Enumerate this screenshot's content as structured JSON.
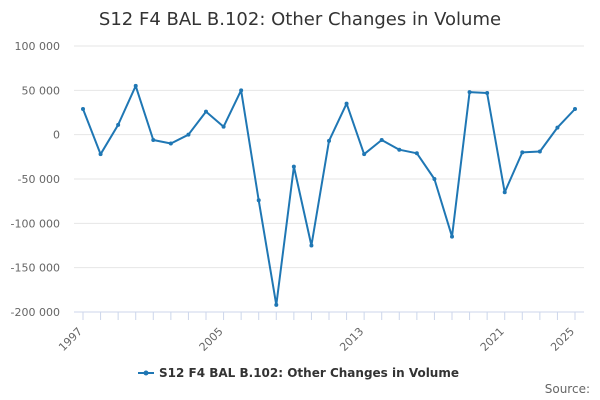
{
  "chart_data": {
    "type": "line",
    "title": "S12 F4 BAL B.102: Other Changes in Volume",
    "xlabel": "",
    "ylabel": "",
    "x": [
      1997,
      1998,
      1999,
      2000,
      2001,
      2002,
      2003,
      2004,
      2005,
      2006,
      2007,
      2008,
      2009,
      2010,
      2011,
      2012,
      2013,
      2014,
      2015,
      2016,
      2017,
      2018,
      2019,
      2020,
      2021,
      2022,
      2023,
      2024,
      2025
    ],
    "series": [
      {
        "name": "S12 F4 BAL B.102: Other Changes in Volume",
        "color": "#1f77b4",
        "values": [
          29000,
          -22000,
          11000,
          55000,
          -6000,
          -10000,
          0,
          26000,
          9000,
          50000,
          -74000,
          -192000,
          -36000,
          -125000,
          -7000,
          35000,
          -22000,
          -6000,
          -17000,
          -21000,
          -50000,
          -115000,
          48000,
          47000,
          -65000,
          -20000,
          -19000,
          8000,
          29000
        ]
      }
    ],
    "ylim": [
      -200000,
      100000
    ],
    "yticks": [
      100000,
      50000,
      0,
      -50000,
      -100000,
      -150000,
      -200000
    ],
    "ytick_labels": [
      "100 000",
      "50 000",
      "0",
      "-50 000",
      "-100 000",
      "-150 000",
      "-200 000"
    ],
    "xtick_labels": [
      1997,
      2005,
      2013,
      2021,
      2025
    ],
    "grid": true,
    "legend": "bottom-center",
    "source_label": "Source:"
  }
}
